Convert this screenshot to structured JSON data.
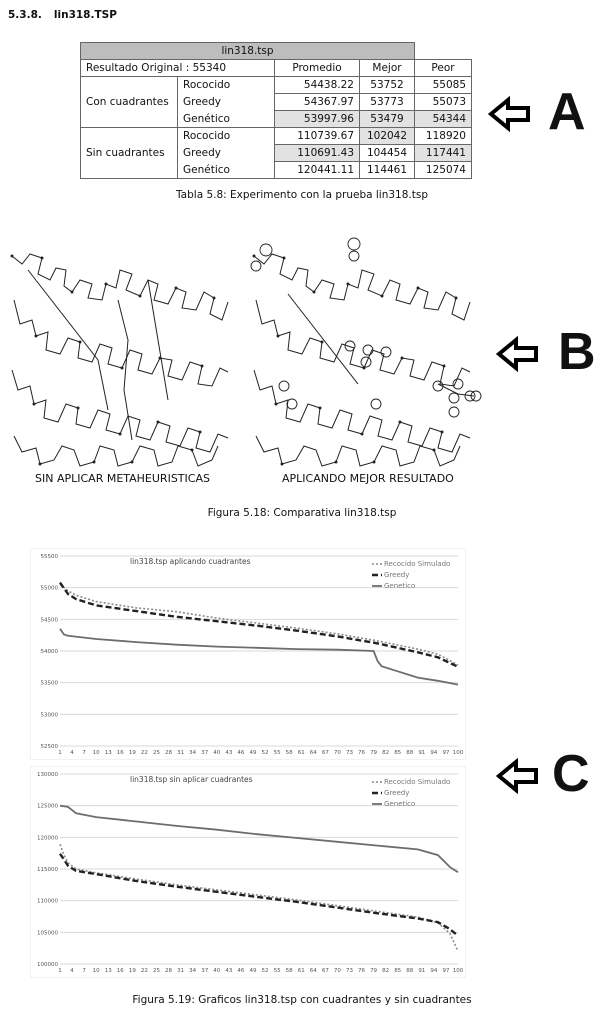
{
  "section": {
    "number": "5.3.8.",
    "title": "lin318.TSP"
  },
  "table": {
    "title": "lin318.tsp",
    "original_label": "Resultado Original : 55340",
    "headers": [
      "Promedio",
      "Mejor",
      "Peor"
    ],
    "groups": [
      {
        "name": "Con cuadrantes",
        "rows": [
          {
            "method": "Rococido",
            "avg": "54438.22",
            "best": "53752",
            "worst": "55085"
          },
          {
            "method": "Greedy",
            "avg": "54367.97",
            "best": "53773",
            "worst": "55073"
          },
          {
            "method": "Genético",
            "avg": "53997.96",
            "best": "53479",
            "worst": "54344"
          }
        ]
      },
      {
        "name": "Sin cuadrantes",
        "rows": [
          {
            "method": "Rococido",
            "avg": "110739.67",
            "best": "102042",
            "worst": "118920"
          },
          {
            "method": "Greedy",
            "avg": "110691.43",
            "best": "104454",
            "worst": "117441"
          },
          {
            "method": "Genético",
            "avg": "120441.11",
            "best": "114461",
            "worst": "125074"
          }
        ]
      }
    ],
    "caption": "Tabla 5.8: Experimento con la prueba lin318.tsp"
  },
  "maps": {
    "left_label": "SIN APLICAR METAHEURISTICAS",
    "right_label": "APLICANDO MEJOR RESULTADO",
    "caption": "Figura 5.18: Comparativa lin318.tsp"
  },
  "markers": [
    "A",
    "B",
    "C"
  ],
  "colors": {
    "table_header": "#bdbdbd",
    "highlight": "#e2e2e2",
    "grid": "#d9d9d9",
    "rococido": "#8a8a8a",
    "greedy": "#222222",
    "genetico": "#6d6d6d"
  },
  "chart_data": [
    {
      "type": "line",
      "title": "lin318.tsp aplicando cuadrantes",
      "x_ticks": [
        1,
        4,
        7,
        10,
        13,
        16,
        19,
        22,
        25,
        28,
        31,
        34,
        37,
        40,
        43,
        46,
        49,
        52,
        55,
        58,
        61,
        64,
        67,
        70,
        73,
        76,
        79,
        82,
        85,
        88,
        91,
        94,
        97,
        100
      ],
      "xlim": [
        1,
        100
      ],
      "y_ticks": [
        52500,
        53000,
        53500,
        54000,
        54500,
        55000,
        55500
      ],
      "ylim": [
        52500,
        55500
      ],
      "legend_position": "top-right",
      "series": [
        {
          "name": "Recocido Simulado",
          "style": "dotted",
          "x": [
            1,
            3,
            5,
            10,
            20,
            30,
            40,
            50,
            60,
            70,
            80,
            90,
            95,
            100
          ],
          "y": [
            55050,
            54950,
            54880,
            54780,
            54680,
            54620,
            54520,
            54440,
            54360,
            54270,
            54160,
            54030,
            53950,
            53780
          ]
        },
        {
          "name": "Greedy",
          "style": "dashed",
          "x": [
            1,
            3,
            5,
            10,
            20,
            30,
            40,
            50,
            60,
            70,
            80,
            90,
            95,
            100
          ],
          "y": [
            55080,
            54900,
            54820,
            54720,
            54630,
            54540,
            54470,
            54400,
            54320,
            54230,
            54120,
            53980,
            53900,
            53750
          ]
        },
        {
          "name": "Genetico",
          "style": "solid",
          "x": [
            1,
            2,
            3,
            10,
            20,
            30,
            40,
            50,
            60,
            70,
            79,
            80,
            81,
            85,
            90,
            95,
            100
          ],
          "y": [
            54350,
            54260,
            54240,
            54190,
            54140,
            54100,
            54070,
            54050,
            54030,
            54020,
            54000,
            53840,
            53760,
            53680,
            53580,
            53530,
            53470
          ]
        }
      ]
    },
    {
      "type": "line",
      "title": "lin318.tsp sin aplicar cuadrantes",
      "x_ticks": [
        1,
        4,
        7,
        10,
        13,
        16,
        19,
        22,
        25,
        28,
        31,
        34,
        37,
        40,
        43,
        46,
        49,
        52,
        55,
        58,
        61,
        64,
        67,
        70,
        73,
        76,
        79,
        82,
        85,
        88,
        91,
        94,
        97,
        100
      ],
      "xlim": [
        1,
        100
      ],
      "y_ticks": [
        100000,
        105000,
        110000,
        115000,
        120000,
        125000,
        130000
      ],
      "ylim": [
        100000,
        130000
      ],
      "legend_position": "top-right",
      "series": [
        {
          "name": "Recocido Simulado",
          "style": "dotted",
          "x": [
            1,
            2,
            3,
            5,
            10,
            20,
            30,
            40,
            50,
            60,
            70,
            80,
            90,
            95,
            98,
            100
          ],
          "y": [
            118900,
            117200,
            116000,
            115000,
            114400,
            113400,
            112500,
            111700,
            110900,
            110100,
            109200,
            108300,
            107400,
            106500,
            104800,
            102000
          ]
        },
        {
          "name": "Greedy",
          "style": "dashed",
          "x": [
            1,
            2,
            3,
            5,
            10,
            20,
            30,
            40,
            50,
            60,
            70,
            80,
            90,
            95,
            98,
            100
          ],
          "y": [
            117400,
            116500,
            115500,
            114700,
            114200,
            113100,
            112200,
            111400,
            110600,
            109800,
            108900,
            108000,
            107200,
            106600,
            105500,
            104450
          ]
        },
        {
          "name": "Genetico",
          "style": "solid",
          "x": [
            1,
            3,
            5,
            10,
            20,
            30,
            40,
            50,
            60,
            70,
            80,
            90,
            95,
            98,
            100
          ],
          "y": [
            125000,
            124800,
            123800,
            123200,
            122500,
            121800,
            121200,
            120500,
            119900,
            119300,
            118700,
            118100,
            117200,
            115300,
            114500
          ]
        }
      ]
    }
  ],
  "charts_caption": "Figura 5.19: Graficos lin318.tsp con cuadrantes y sin cuadrantes"
}
